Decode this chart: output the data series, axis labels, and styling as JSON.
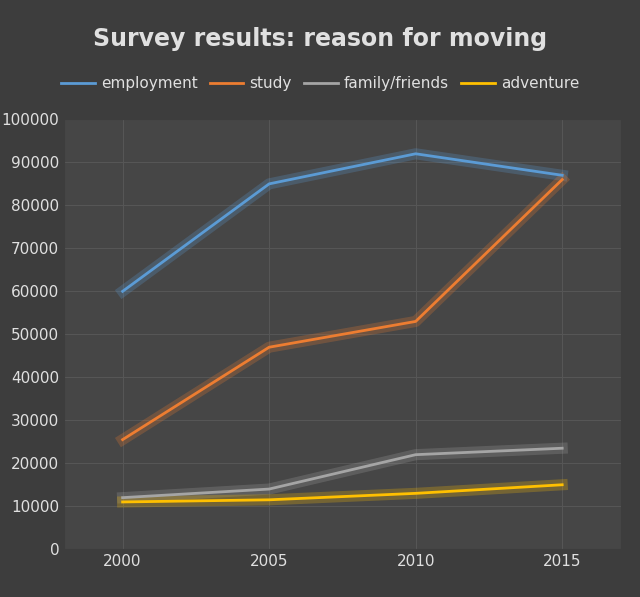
{
  "title": "Survey results: reason for moving",
  "background_color": "#3d3d3d",
  "plot_bg_color": "#464646",
  "grid_color": "#565656",
  "text_color": "#e0e0e0",
  "x_values": [
    2000,
    2005,
    2010,
    2015
  ],
  "series": [
    {
      "label": "employment",
      "color": "#5b9bd5",
      "glow_color": "#5b9bd5",
      "values": [
        60000,
        85000,
        92000,
        87000
      ]
    },
    {
      "label": "study",
      "color": "#ed7d31",
      "glow_color": "#ed7d31",
      "values": [
        25500,
        47000,
        53000,
        86000
      ]
    },
    {
      "label": "family/friends",
      "color": "#a5a5a5",
      "glow_color": "#a5a5a5",
      "values": [
        12000,
        14000,
        22000,
        23500
      ]
    },
    {
      "label": "adventure",
      "color": "#ffc000",
      "glow_color": "#ffc000",
      "values": [
        11000,
        11500,
        13000,
        15000
      ]
    }
  ],
  "ylim": [
    0,
    100000
  ],
  "yticks": [
    0,
    10000,
    20000,
    30000,
    40000,
    50000,
    60000,
    70000,
    80000,
    90000,
    100000
  ],
  "xticks": [
    2000,
    2005,
    2010,
    2015
  ],
  "title_fontsize": 17,
  "legend_fontsize": 11,
  "tick_fontsize": 11
}
